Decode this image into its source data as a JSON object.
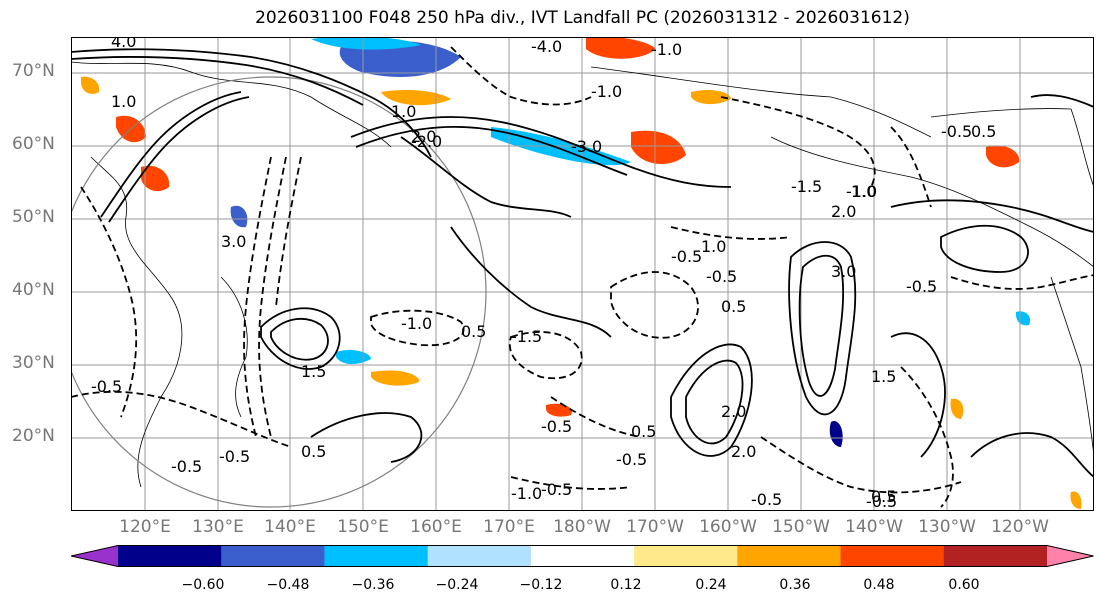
{
  "title": "2026031100 F048 250 hPa div., IVT Landfall PC (2026031312 - 2026031612)",
  "lat_labels": [
    "70°N",
    "60°N",
    "50°N",
    "40°N",
    "30°N",
    "20°N"
  ],
  "lon_labels": [
    "120°E",
    "130°E",
    "140°E",
    "150°E",
    "160°E",
    "170°E",
    "180°W",
    "170°W",
    "160°W",
    "150°W",
    "140°W",
    "130°W",
    "120°W"
  ],
  "colorbar": {
    "ticks": [
      "−0.60",
      "−0.48",
      "−0.36",
      "−0.24",
      "−0.12",
      "0.12",
      "0.24",
      "0.36",
      "0.48",
      "0.60"
    ],
    "colors": [
      "#9932cc",
      "#00008b",
      "#3a5fcd",
      "#00bfff",
      "#b0e2ff",
      "#ffffff",
      "#ffe98a",
      "#ffa500",
      "#ff4500",
      "#b22222",
      "#ff82ab"
    ]
  },
  "contour_labels": [
    "-0.5",
    "-1.0",
    "-1.5",
    "-2.0",
    "-3.0",
    "-4.0",
    "0.5",
    "1.0",
    "1.5",
    "2.0",
    "3.0",
    "4.0"
  ]
}
